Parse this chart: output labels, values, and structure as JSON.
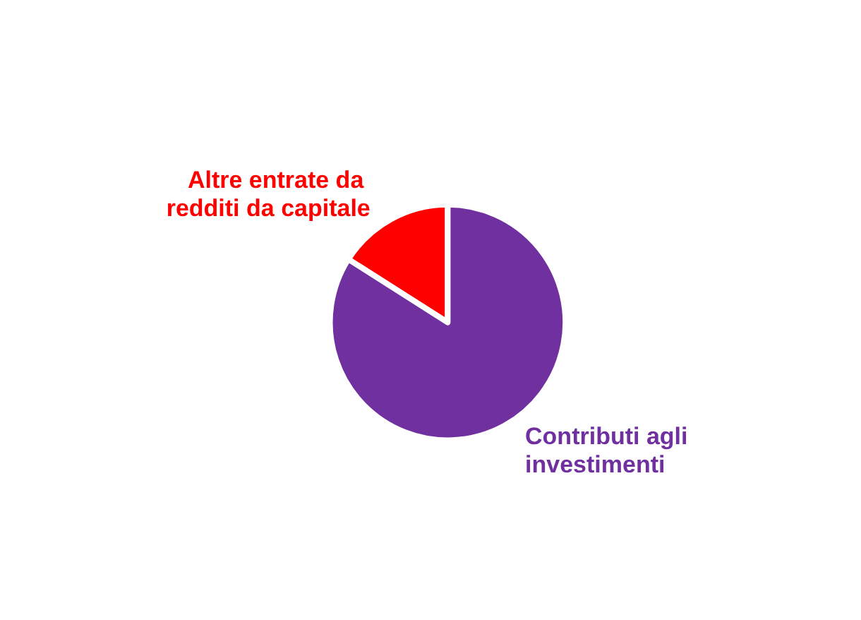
{
  "chart_data": {
    "type": "pie",
    "categories": [
      "Altre entrate da redditi da capitale",
      "Contributi agli investimenti"
    ],
    "values": [
      16,
      84
    ],
    "colors": [
      "#ff0000",
      "#7030a0"
    ]
  }
}
